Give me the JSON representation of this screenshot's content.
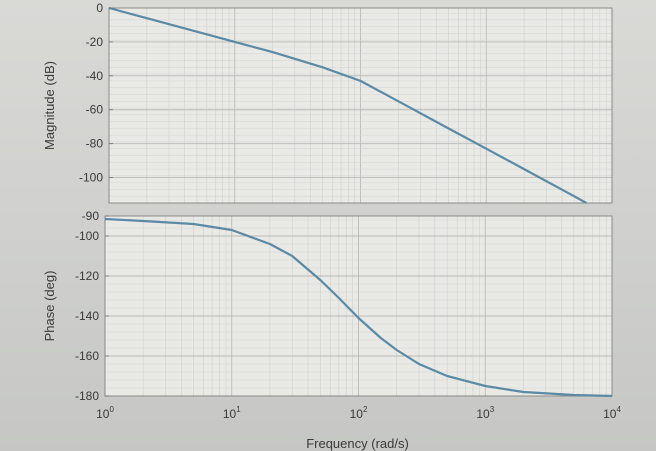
{
  "chart_data": [
    {
      "type": "line",
      "title": "",
      "xlabel": "",
      "ylabel": "Magnitude (dB)",
      "xscale": "log",
      "xlim": [
        1,
        10000
      ],
      "ylim": [
        -115,
        0
      ],
      "yticks": [
        "0",
        "-20",
        "-40",
        "-60",
        "-80",
        "-100"
      ],
      "ytick_values": [
        0,
        -20,
        -40,
        -60,
        -80,
        -100
      ],
      "grid": true,
      "series": [
        {
          "color": "#5b8aa6",
          "x": [
            1,
            2,
            5,
            10,
            20,
            50,
            100,
            200,
            500,
            1000,
            2000,
            5000,
            7000
          ],
          "y": [
            0,
            -6,
            -14,
            -20,
            -26,
            -35,
            -43,
            -55,
            -71,
            -83,
            -95,
            -111,
            -117
          ]
        }
      ]
    },
    {
      "type": "line",
      "title": "",
      "xlabel": "Frequency (rad/s)",
      "ylabel": "Phase (deg)",
      "xscale": "log",
      "xlim": [
        1,
        10000
      ],
      "ylim": [
        -180,
        -90
      ],
      "yticks": [
        "-90",
        "-100",
        "-120",
        "-140",
        "-160",
        "-180"
      ],
      "ytick_values": [
        -90,
        -100,
        -120,
        -140,
        -160,
        -180
      ],
      "xticks": [
        {
          "base": "10",
          "exp": "0"
        },
        {
          "base": "10",
          "exp": "1"
        },
        {
          "base": "10",
          "exp": "2"
        },
        {
          "base": "10",
          "exp": "3"
        },
        {
          "base": "10",
          "exp": "4"
        }
      ],
      "grid": true,
      "series": [
        {
          "color": "#5b8aa6",
          "x": [
            1,
            2,
            5,
            10,
            20,
            30,
            50,
            70,
            100,
            150,
            200,
            300,
            500,
            1000,
            2000,
            5000,
            10000
          ],
          "y": [
            -91.5,
            -92.5,
            -94,
            -97,
            -104,
            -110,
            -122,
            -131,
            -141,
            -151,
            -157,
            -164,
            -170,
            -175,
            -178,
            -179.5,
            -180
          ]
        }
      ]
    }
  ]
}
